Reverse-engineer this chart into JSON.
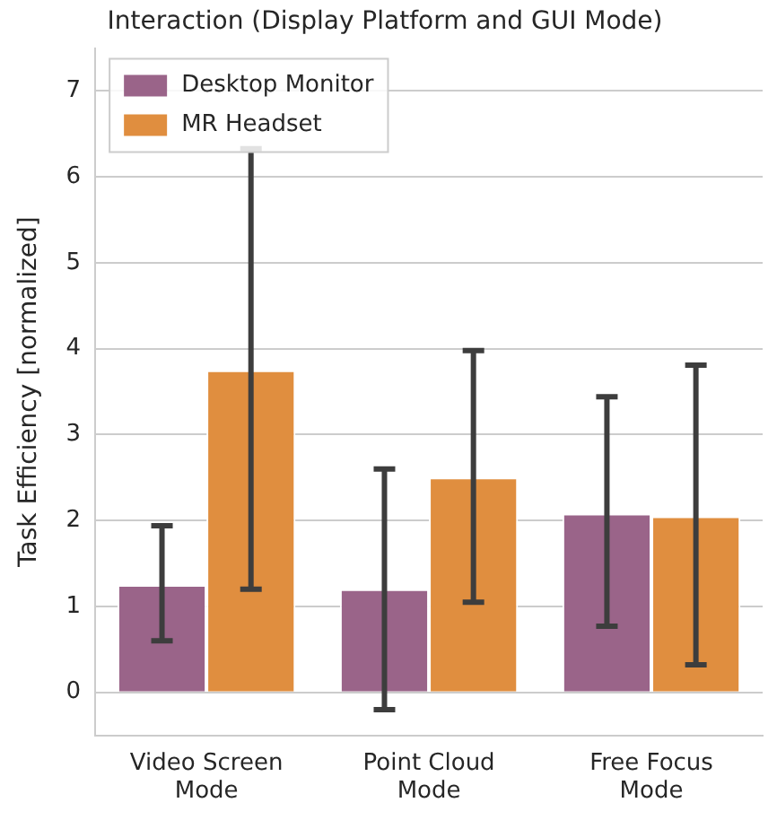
{
  "chart_data": {
    "type": "bar",
    "title": "Interaction (Display Platform and GUI Mode)",
    "ylabel": "Task Efficiency [normalized]",
    "categories": [
      "Video Screen\nMode",
      "Point Cloud\nMode",
      "Free Focus\nMode"
    ],
    "series": [
      {
        "name": "Desktop Monitor",
        "color": "#9a6489",
        "values": [
          1.25,
          1.2,
          2.08
        ],
        "errors": [
          [
            0.6,
            1.94
          ],
          [
            -0.2,
            2.6
          ],
          [
            0.77,
            3.44
          ]
        ]
      },
      {
        "name": "MR Headset",
        "color": "#e08e3f",
        "values": [
          3.75,
          2.5,
          2.05
        ],
        "errors": [
          [
            1.2,
            6.33
          ],
          [
            1.05,
            3.98
          ],
          [
            0.32,
            3.81
          ]
        ]
      }
    ],
    "ylim": [
      -0.5,
      7.5
    ],
    "yticks": [
      0,
      1,
      2,
      3,
      4,
      5,
      6,
      7
    ],
    "grid": "y",
    "legend": "top left"
  }
}
